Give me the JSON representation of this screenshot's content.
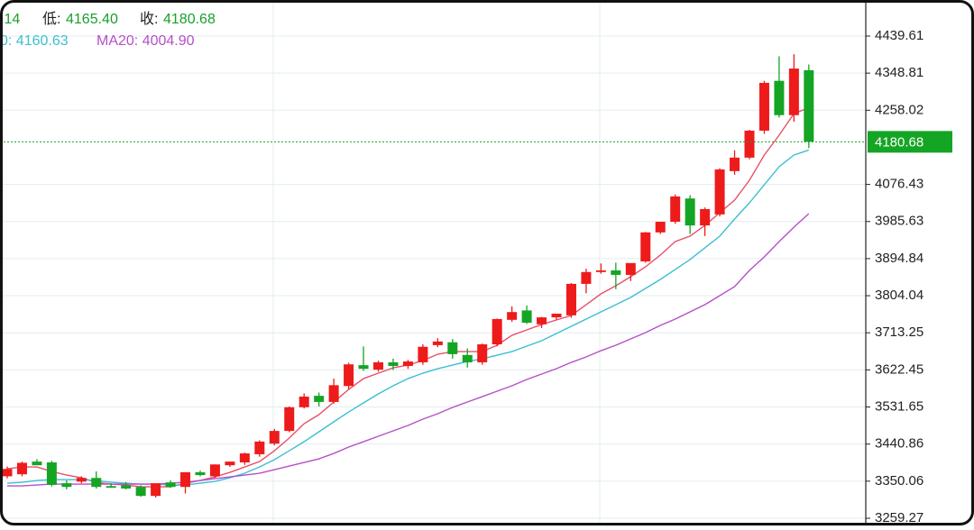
{
  "chart_data": {
    "type": "candlestick",
    "header": [
      {
        "text": ".14",
        "color": "#18a02a"
      },
      {
        "text": "低:",
        "color": "#222222"
      },
      {
        "text": "4165.40",
        "color": "#18a02a"
      },
      {
        "text": "收:",
        "color": "#222222"
      },
      {
        "text": "4180.68",
        "color": "#18a02a"
      }
    ],
    "legend": [
      {
        "text": "0: 4160.63",
        "color": "#3bbfd0"
      },
      {
        "text": "MA20: 4004.90",
        "color": "#b64fc8"
      }
    ],
    "up_color": "#ee1b1b",
    "down_color": "#14a524",
    "ohlc": {
      "open": [
        3362,
        3367,
        3398,
        3396,
        3345,
        3349,
        3358,
        3338,
        3340,
        3336,
        3314,
        3347,
        3336,
        3372,
        3362,
        3389,
        3396,
        3416,
        3442,
        3473,
        3531,
        3559,
        3544,
        3583,
        3634,
        3623,
        3641,
        3632,
        3641,
        3683,
        3690,
        3659,
        3641,
        3685,
        3745,
        3768,
        3734,
        3751,
        3756,
        3833,
        3862,
        3866,
        3855,
        3888,
        3959,
        3985,
        4042,
        3976,
        4003,
        4109,
        4142,
        4208,
        4330,
        4246,
        4356
      ],
      "high": [
        3386,
        3398,
        3404,
        3400,
        3352,
        3362,
        3374,
        3345,
        3348,
        3340,
        3345,
        3352,
        3372,
        3376,
        3391,
        3398,
        3420,
        3450,
        3478,
        3533,
        3565,
        3567,
        3601,
        3640,
        3680,
        3645,
        3650,
        3647,
        3685,
        3700,
        3698,
        3675,
        3687,
        3748,
        3778,
        3780,
        3752,
        3760,
        3835,
        3870,
        3883,
        3885,
        3880,
        3960,
        3985,
        4052,
        4050,
        4020,
        4116,
        4160,
        4210,
        4330,
        4390,
        4395,
        4370
      ],
      "low": [
        3357,
        3362,
        3390,
        3337,
        3330,
        3345,
        3332,
        3334,
        3330,
        3312,
        3310,
        3334,
        3320,
        3362,
        3358,
        3385,
        3390,
        3410,
        3438,
        3470,
        3528,
        3533,
        3540,
        3575,
        3620,
        3618,
        3622,
        3625,
        3635,
        3678,
        3650,
        3628,
        3635,
        3680,
        3740,
        3735,
        3725,
        3745,
        3750,
        3810,
        3858,
        3820,
        3840,
        3885,
        3955,
        3980,
        3955,
        3950,
        3998,
        4100,
        4138,
        4200,
        4240,
        4230,
        4165.4
      ],
      "close": [
        3380,
        3395,
        3389,
        3341,
        3336,
        3358,
        3336,
        3334,
        3332,
        3314,
        3345,
        3336,
        3372,
        3365,
        3391,
        3398,
        3418,
        3447,
        3473,
        3531,
        3557,
        3544,
        3585,
        3636,
        3625,
        3641,
        3632,
        3643,
        3679,
        3692,
        3661,
        3641,
        3685,
        3747,
        3764,
        3738,
        3751,
        3760,
        3833,
        3862,
        3866,
        3855,
        3884,
        3959,
        3985,
        4047,
        3976,
        4016,
        4113,
        4142,
        4208,
        4325,
        4246,
        4360,
        4180.68
      ]
    },
    "series": [
      {
        "color": "#e8506a",
        "values": [
          3380.5,
          3384.9,
          3384.9,
          3373.8,
          3365.0,
          3358.4,
          3347.4,
          3343.0,
          3340.7,
          3336.3,
          3336.3,
          3336.3,
          3345.2,
          3351.8,
          3360.6,
          3371.6,
          3384.9,
          3398.1,
          3424.6,
          3455.5,
          3490.8,
          3512.9,
          3543.7,
          3574.7,
          3601.1,
          3614.4,
          3627.6,
          3634.2,
          3645.3,
          3660.7,
          3667.3,
          3667.3,
          3667.3,
          3682.8,
          3707.0,
          3720.3,
          3733.5,
          3744.6,
          3755.6,
          3782.1,
          3808.6,
          3828.4,
          3850.5,
          3874.8,
          3903.5,
          3936.6,
          3949.8,
          3976.2,
          4007.1,
          4038.0,
          4086.6,
          4148.4,
          4196.9,
          4249.9,
          4263.9
        ]
      },
      {
        "color": "#3bbfd0",
        "values": [
          3345.2,
          3347.4,
          3351.8,
          3354.0,
          3354.0,
          3354.0,
          3351.8,
          3347.4,
          3345.2,
          3343.0,
          3343.0,
          3340.7,
          3340.7,
          3345.2,
          3349.6,
          3358.4,
          3369.5,
          3384.9,
          3402.6,
          3424.6,
          3446.7,
          3471.0,
          3495.3,
          3519.5,
          3541.6,
          3563.6,
          3583.5,
          3601.1,
          3614.4,
          3625.4,
          3634.2,
          3643.1,
          3649.7,
          3658.5,
          3667.3,
          3680.6,
          3693.8,
          3711.5,
          3729.1,
          3746.8,
          3764.4,
          3782.1,
          3799.7,
          3821.8,
          3843.9,
          3868.2,
          3892.5,
          3921.2,
          3949.8,
          3991.7,
          4031.4,
          4075.6,
          4119.7,
          4148.4,
          4160.63
        ]
      },
      {
        "color": "#b64fc8",
        "values": [
          3338.5,
          3338.5,
          3340.7,
          3343.0,
          3343.0,
          3343.0,
          3343.0,
          3343.0,
          3343.0,
          3343.0,
          3343.0,
          3345.2,
          3347.4,
          3351.8,
          3356.2,
          3360.6,
          3365.0,
          3369.5,
          3378.3,
          3387.1,
          3396.0,
          3404.8,
          3418.0,
          3433.5,
          3446.7,
          3460.0,
          3473.2,
          3486.4,
          3501.9,
          3515.1,
          3530.6,
          3543.8,
          3557.0,
          3570.3,
          3583.5,
          3599.0,
          3612.2,
          3625.4,
          3640.9,
          3654.1,
          3669.5,
          3682.8,
          3698.2,
          3713.7,
          3731.3,
          3746.8,
          3764.4,
          3782.1,
          3804.2,
          3826.3,
          3866.0,
          3899.1,
          3936.6,
          3971.9,
          4004.9
        ]
      }
    ],
    "last_price": 4180.68,
    "last_price_color": "#14a524",
    "ylim": [
      3248.2,
      4516.8
    ],
    "yticks": [
      4439.61,
      4348.81,
      4258.02,
      4076.43,
      3985.63,
      3894.84,
      3804.04,
      3713.25,
      3622.45,
      3531.65,
      3440.86,
      3350.06,
      3259.27
    ],
    "grid": true
  }
}
